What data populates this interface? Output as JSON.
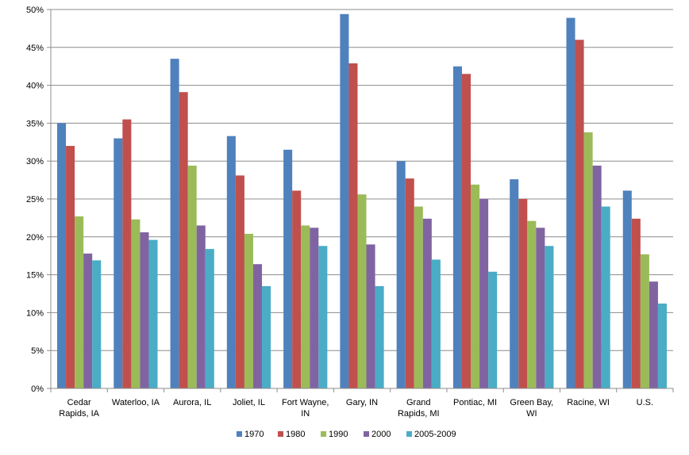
{
  "chart_data": {
    "type": "bar",
    "categories": [
      [
        "Cedar",
        "Rapids, IA"
      ],
      [
        "Waterloo, IA"
      ],
      [
        "Aurora, IL"
      ],
      [
        "Joliet, IL"
      ],
      [
        "Fort Wayne,",
        "IN"
      ],
      [
        "Gary, IN"
      ],
      [
        "Grand",
        "Rapids, MI"
      ],
      [
        "Pontiac, MI"
      ],
      [
        "Green Bay,",
        "WI"
      ],
      [
        "Racine, WI"
      ],
      [
        "U.S."
      ]
    ],
    "series": [
      {
        "name": "1970",
        "color": "#4F81BD",
        "values": [
          35.0,
          33.0,
          43.5,
          33.3,
          31.5,
          49.4,
          30.0,
          42.5,
          27.6,
          48.9,
          26.1
        ]
      },
      {
        "name": "1980",
        "color": "#C0504D",
        "values": [
          32.0,
          35.5,
          39.1,
          28.1,
          26.1,
          42.9,
          27.7,
          41.5,
          25.0,
          46.0,
          22.4
        ]
      },
      {
        "name": "1990",
        "color": "#9BBB59",
        "values": [
          22.7,
          22.3,
          29.4,
          20.4,
          21.5,
          25.6,
          24.0,
          26.9,
          22.1,
          33.8,
          17.7
        ]
      },
      {
        "name": "2000",
        "color": "#8064A2",
        "values": [
          17.8,
          20.6,
          21.5,
          16.4,
          21.2,
          19.0,
          22.4,
          25.0,
          21.2,
          29.4,
          14.1
        ]
      },
      {
        "name": "2005-2009",
        "color": "#4BACC6",
        "values": [
          16.9,
          19.6,
          18.4,
          13.5,
          18.8,
          13.5,
          17.0,
          15.4,
          18.8,
          24.0,
          11.2
        ]
      }
    ],
    "y_ticks": [
      "0%",
      "5%",
      "10%",
      "15%",
      "20%",
      "25%",
      "30%",
      "35%",
      "40%",
      "45%",
      "50%"
    ],
    "ylim": [
      0,
      50
    ],
    "grid": true,
    "legend_position": "bottom",
    "title": "",
    "xlabel": "",
    "ylabel": ""
  }
}
